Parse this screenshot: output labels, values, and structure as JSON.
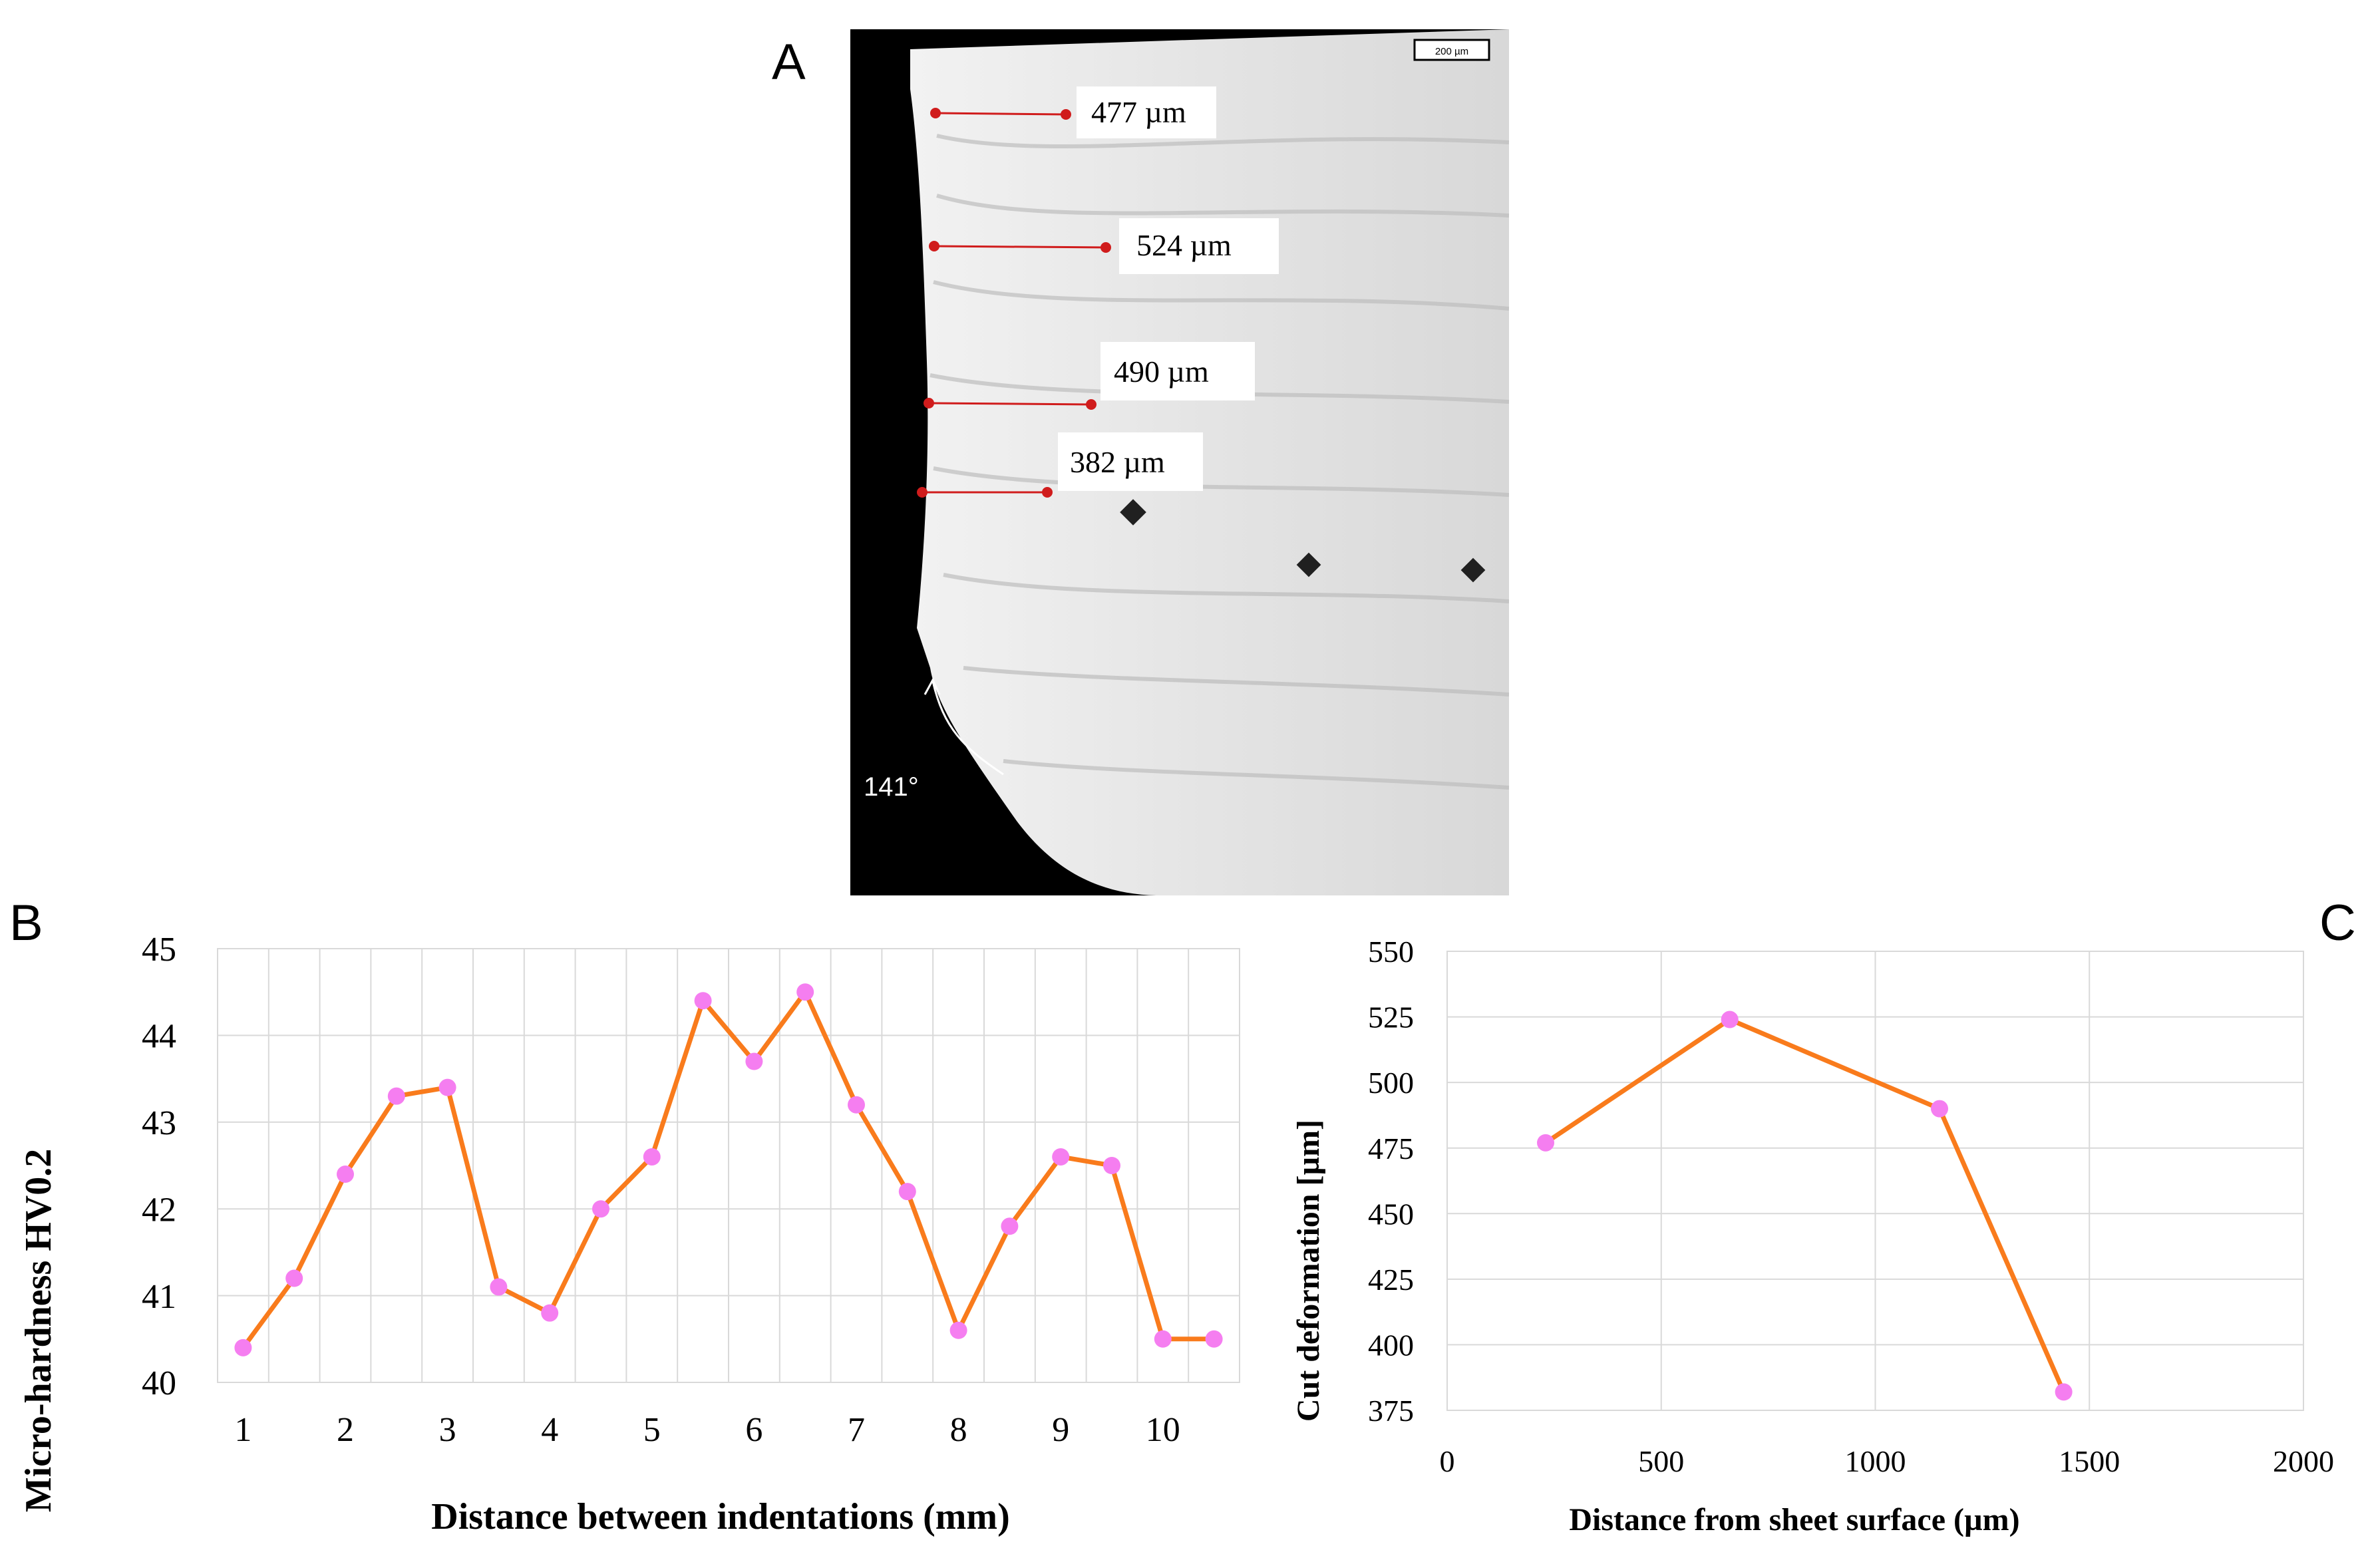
{
  "panel_letters": {
    "a": "A",
    "b": "B",
    "c": "C"
  },
  "micrograph": {
    "scale_bar": "200 µm",
    "measurements": [
      "477 µm",
      "524 µm",
      "490 µm",
      "382 µm"
    ],
    "angle": "141°"
  },
  "colors": {
    "line": "#f97b1c",
    "marker": "#f57ef0",
    "grid": "#d9d9d9",
    "measure": "#d01c1c"
  },
  "chart_data": [
    {
      "type": "line",
      "title": "",
      "xlabel": "Distance between indentations (mm)",
      "ylabel": "Micro-hardness HV0.2",
      "x": [
        1,
        1.5,
        2,
        2.5,
        3,
        3.5,
        4,
        4.5,
        5,
        5.5,
        6,
        6.5,
        7,
        7.5,
        8,
        8.5,
        9,
        9.5,
        10,
        10.5
      ],
      "series": [
        {
          "values": [
            40.4,
            41.2,
            42.4,
            43.3,
            43.4,
            41.1,
            40.8,
            42.0,
            42.6,
            44.4,
            43.7,
            44.5,
            43.2,
            42.2,
            40.6,
            41.8,
            42.6,
            42.5,
            40.5,
            40.5
          ]
        }
      ],
      "xticks": [
        1,
        2,
        3,
        4,
        5,
        6,
        7,
        8,
        9,
        10
      ],
      "yticks": [
        40,
        41,
        42,
        43,
        44,
        45
      ],
      "xlim": [
        0.75,
        10.75
      ],
      "ylim": [
        40,
        45
      ],
      "grid": true
    },
    {
      "type": "line",
      "title": "",
      "xlabel": "Distance from sheet surface (µm)",
      "ylabel": "Cut deformation [µm]",
      "x": [
        230,
        660,
        1150,
        1440
      ],
      "series": [
        {
          "values": [
            477,
            524,
            490,
            382
          ]
        }
      ],
      "xticks": [
        0,
        500,
        1000,
        1500,
        2000
      ],
      "yticks": [
        375,
        400,
        425,
        450,
        475,
        500,
        525,
        550
      ],
      "xlim": [
        0,
        2000
      ],
      "ylim": [
        375,
        550
      ],
      "grid": true
    }
  ]
}
